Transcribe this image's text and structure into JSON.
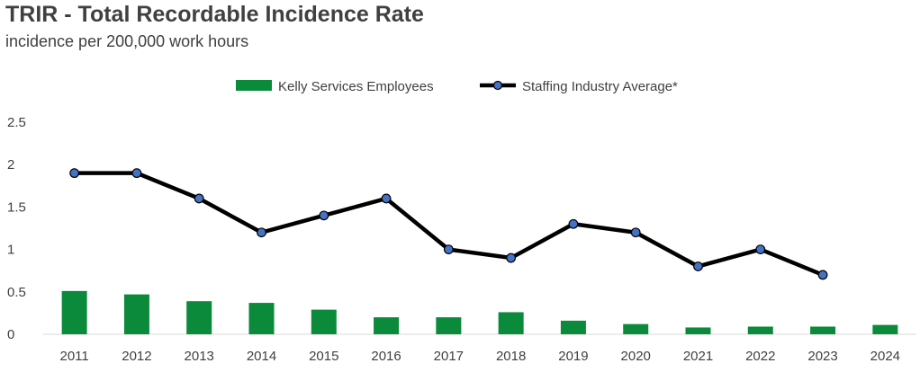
{
  "chart_data": {
    "type": "bar+line",
    "title": "TRIR - Total Recordable Incidence Rate",
    "subtitle": "incidence per 200,000 work hours",
    "categories": [
      "2011",
      "2012",
      "2013",
      "2014",
      "2015",
      "2016",
      "2017",
      "2018",
      "2019",
      "2020",
      "2021",
      "2022",
      "2023",
      "2024"
    ],
    "series": [
      {
        "name": "Kelly Services Employees",
        "type": "bar",
        "color": "#0a8a3a",
        "values": [
          0.51,
          0.47,
          0.39,
          0.37,
          0.29,
          0.2,
          0.2,
          0.26,
          0.16,
          0.12,
          0.08,
          0.09,
          0.09,
          0.11
        ]
      },
      {
        "name": "Staffing Industry Average*",
        "type": "line",
        "color": "#000000",
        "marker_color": "#4472c4",
        "values": [
          1.9,
          1.9,
          1.6,
          1.2,
          1.4,
          1.6,
          1.0,
          0.9,
          1.3,
          1.2,
          0.8,
          1.0,
          0.7,
          null
        ]
      }
    ],
    "ylim": [
      0,
      2.5
    ],
    "yticks": [
      "0",
      "0.5",
      "1",
      "1.5",
      "2",
      "2.5"
    ],
    "legend": "top-center",
    "grid": false
  }
}
